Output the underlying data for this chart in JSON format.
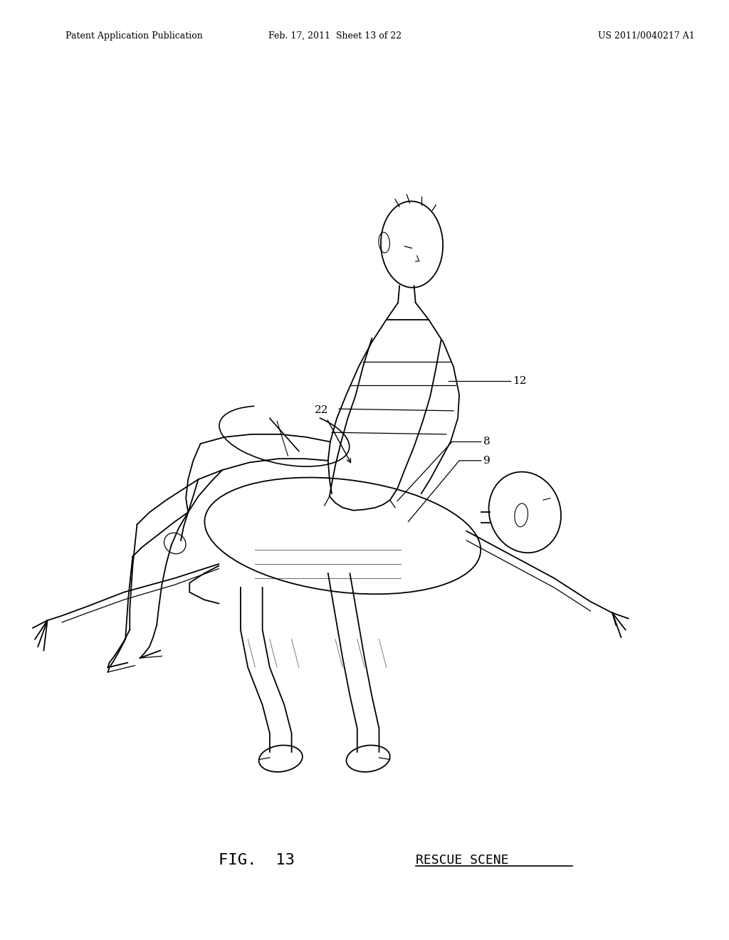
{
  "background_color": "#ffffff",
  "header_left": "Patent Application Publication",
  "header_mid": "Feb. 17, 2011  Sheet 13 of 22",
  "header_right": "US 2011/0040217 A1",
  "fig_label": "FIG.  13",
  "fig_title": "RESCUE SCENE",
  "fig_width": 10.24,
  "fig_height": 13.2,
  "dpi": 100
}
